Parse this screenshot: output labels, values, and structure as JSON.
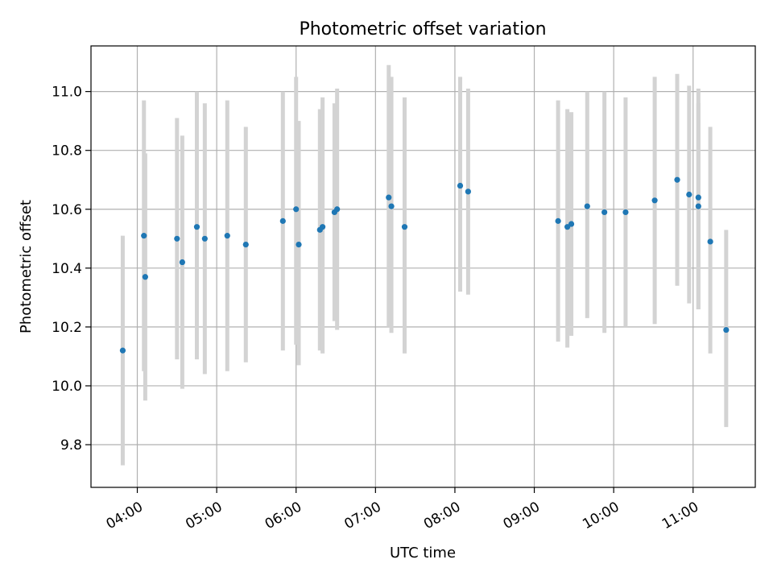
{
  "chart_data": {
    "type": "scatter",
    "title": "Photometric offset variation",
    "xlabel": "UTC time",
    "ylabel": "Photometric offset",
    "xlim": [
      "03:25",
      "11:47"
    ],
    "ylim": [
      9.655,
      11.155
    ],
    "grid": true,
    "x_ticks": [
      "04:00",
      "05:00",
      "06:00",
      "07:00",
      "08:00",
      "09:00",
      "10:00",
      "11:00"
    ],
    "y_ticks": [
      "9.8",
      "10.0",
      "10.2",
      "10.4",
      "10.6",
      "10.8",
      "11.0"
    ],
    "colors": {
      "point": "#1f77b4",
      "errorbar": "#d3d3d3",
      "grid": "#b0b0b0"
    },
    "series": [
      {
        "points": [
          {
            "t": "03:49",
            "y": 10.12,
            "lo": 9.73,
            "hi": 10.51
          },
          {
            "t": "04:05",
            "y": 10.51,
            "lo": 10.05,
            "hi": 10.97
          },
          {
            "t": "04:06",
            "y": 10.37,
            "lo": 9.95,
            "hi": 10.79
          },
          {
            "t": "04:30",
            "y": 10.5,
            "lo": 10.09,
            "hi": 10.91
          },
          {
            "t": "04:34",
            "y": 10.42,
            "lo": 9.99,
            "hi": 10.85
          },
          {
            "t": "04:45",
            "y": 10.54,
            "lo": 10.09,
            "hi": 11.0
          },
          {
            "t": "04:51",
            "y": 10.5,
            "lo": 10.04,
            "hi": 10.96
          },
          {
            "t": "05:08",
            "y": 10.51,
            "lo": 10.05,
            "hi": 10.97
          },
          {
            "t": "05:22",
            "y": 10.48,
            "lo": 10.08,
            "hi": 10.88
          },
          {
            "t": "05:50",
            "y": 10.56,
            "lo": 10.12,
            "hi": 11.0
          },
          {
            "t": "06:00",
            "y": 10.6,
            "lo": 10.14,
            "hi": 11.05
          },
          {
            "t": "06:02",
            "y": 10.48,
            "lo": 10.07,
            "hi": 10.9
          },
          {
            "t": "06:18",
            "y": 10.53,
            "lo": 10.12,
            "hi": 10.94
          },
          {
            "t": "06:20",
            "y": 10.54,
            "lo": 10.11,
            "hi": 10.98
          },
          {
            "t": "06:29",
            "y": 10.59,
            "lo": 10.22,
            "hi": 10.96
          },
          {
            "t": "06:31",
            "y": 10.6,
            "lo": 10.19,
            "hi": 11.01
          },
          {
            "t": "07:10",
            "y": 10.64,
            "lo": 10.2,
            "hi": 11.09
          },
          {
            "t": "07:12",
            "y": 10.61,
            "lo": 10.18,
            "hi": 11.05
          },
          {
            "t": "07:22",
            "y": 10.54,
            "lo": 10.11,
            "hi": 10.98
          },
          {
            "t": "08:04",
            "y": 10.68,
            "lo": 10.32,
            "hi": 11.05
          },
          {
            "t": "08:10",
            "y": 10.66,
            "lo": 10.31,
            "hi": 11.01
          },
          {
            "t": "09:18",
            "y": 10.56,
            "lo": 10.15,
            "hi": 10.97
          },
          {
            "t": "09:25",
            "y": 10.54,
            "lo": 10.13,
            "hi": 10.94
          },
          {
            "t": "09:28",
            "y": 10.55,
            "lo": 10.17,
            "hi": 10.93
          },
          {
            "t": "09:40",
            "y": 10.61,
            "lo": 10.23,
            "hi": 11.0
          },
          {
            "t": "09:53",
            "y": 10.59,
            "lo": 10.18,
            "hi": 11.0
          },
          {
            "t": "10:09",
            "y": 10.59,
            "lo": 10.2,
            "hi": 10.98
          },
          {
            "t": "10:31",
            "y": 10.63,
            "lo": 10.21,
            "hi": 11.05
          },
          {
            "t": "10:48",
            "y": 10.7,
            "lo": 10.34,
            "hi": 11.06
          },
          {
            "t": "10:57",
            "y": 10.65,
            "lo": 10.28,
            "hi": 11.02
          },
          {
            "t": "11:04",
            "y": 10.64,
            "lo": 10.26,
            "hi": 11.01
          },
          {
            "t": "11:04",
            "y": 10.61,
            "lo": 10.26,
            "hi": 10.96
          },
          {
            "t": "11:13",
            "y": 10.49,
            "lo": 10.11,
            "hi": 10.88
          },
          {
            "t": "11:25",
            "y": 10.19,
            "lo": 9.86,
            "hi": 10.53
          }
        ]
      }
    ]
  }
}
